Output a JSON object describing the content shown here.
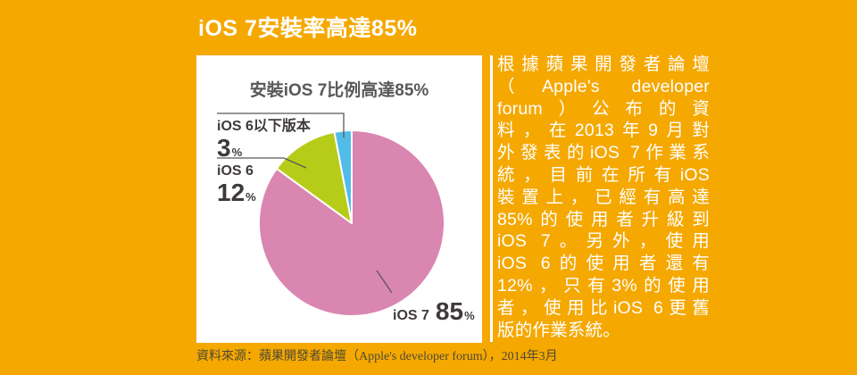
{
  "header": {
    "title": "iOS 7安裝率高達85%"
  },
  "chart_data": {
    "type": "pie",
    "title": "安裝iOS 7比例高達85%",
    "unit": "%",
    "start_angle_deg": 0,
    "direction": "clockwise",
    "legend_position": "labels-with-leader-lines",
    "categories": [
      "iOS 7",
      "iOS 6",
      "iOS 6以下版本"
    ],
    "values": [
      85,
      12,
      3
    ],
    "slices": [
      {
        "key": "ios7",
        "label": "iOS 7",
        "value": 85,
        "color": "#D986B0"
      },
      {
        "key": "ios6",
        "label": "iOS 6",
        "value": 12,
        "color": "#B7CB19"
      },
      {
        "key": "ios6-below",
        "label": "iOS 6以下版本",
        "value": 3,
        "color": "#52BCE9"
      }
    ]
  },
  "footer": {
    "source_note": "資料來源：蘋果開發者論壇（Apple's developer forum），2014年3月"
  },
  "description": {
    "lines": [
      "根據蘋果開發者論壇",
      "（Apple's developer",
      "forum）公布的資",
      "料，在2013年9月對",
      "外發表的iOS 7作業系",
      "統，目前在所有iOS",
      "裝置上，已經有高達",
      "85%的使用者升級到",
      "iOS 7。另外，使用",
      "iOS 6的使用者還有",
      "12%，只有3%的使用",
      "者，使用比iOS 6更舊",
      "版的作業系統。"
    ]
  },
  "colors": {
    "background": "#F5A800",
    "card": "#FFFFFF",
    "title_text": "#FFFFFF",
    "chart_title_text": "#595757",
    "label_text": "#3E3A39",
    "leader_line": "#595757",
    "source_text": "#4E4935",
    "description_text": "#FFFFFF",
    "divider": "#FFFFFF"
  }
}
